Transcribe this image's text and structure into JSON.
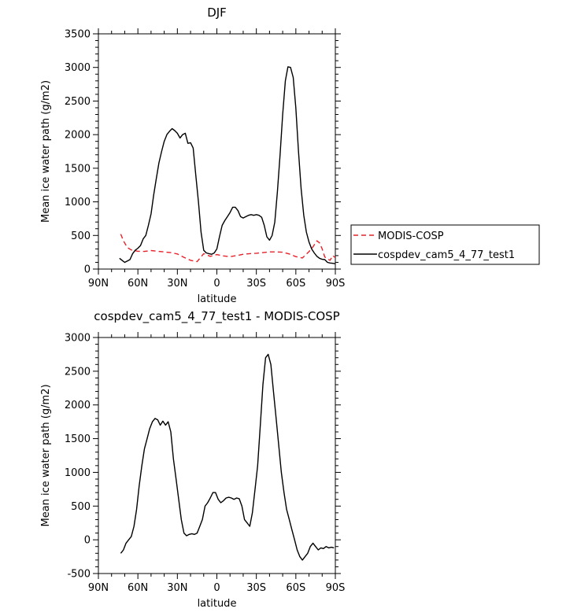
{
  "chart_data": [
    {
      "type": "line",
      "title": "DJF",
      "xlabel": "latitude",
      "ylabel": "Mean ice water path (g/m2)",
      "xlim": [
        90,
        -90
      ],
      "ylim": [
        0,
        3500
      ],
      "xticks": [
        90,
        60,
        30,
        0,
        -30,
        -60,
        -90
      ],
      "xtick_labels": [
        "90N",
        "60N",
        "30N",
        "0",
        "30S",
        "60S",
        "90S"
      ],
      "yticks": [
        0,
        500,
        1000,
        1500,
        2000,
        2500,
        3000,
        3500
      ],
      "ytick_labels": [
        "0",
        "500",
        "1000",
        "1500",
        "2000",
        "2500",
        "3000",
        "3500"
      ],
      "grid": false,
      "legend_position": "right",
      "series": [
        {
          "name": "MODIS-COSP",
          "color": "#e8202a",
          "dash": "dashed",
          "x": [
            73,
            71,
            68,
            65,
            60,
            55,
            50,
            45,
            40,
            35,
            30,
            25,
            20,
            15,
            10,
            5,
            0,
            -5,
            -10,
            -15,
            -20,
            -25,
            -30,
            -35,
            -40,
            -45,
            -50,
            -55,
            -60,
            -65,
            -70,
            -73,
            -76,
            -78,
            -80,
            -82,
            -84,
            -86,
            -88,
            -90
          ],
          "y": [
            520,
            420,
            320,
            285,
            265,
            262,
            275,
            265,
            255,
            245,
            225,
            175,
            130,
            110,
            230,
            190,
            215,
            195,
            185,
            200,
            220,
            230,
            235,
            245,
            255,
            255,
            250,
            225,
            185,
            165,
            260,
            330,
            420,
            390,
            300,
            180,
            150,
            130,
            200,
            170
          ]
        },
        {
          "name": "cospdev_cam5_4_77_test1",
          "color": "#000000",
          "dash": "solid",
          "x": [
            -90,
            -88,
            -86,
            -84,
            -82,
            -80,
            -78,
            -76,
            -74,
            -72,
            -70,
            -68,
            -66,
            -64,
            -62,
            -60,
            -58,
            -56,
            -54,
            -52,
            -50,
            -48,
            -46,
            -44,
            -42,
            -40,
            -38,
            -36,
            -34,
            -32,
            -30,
            -28,
            -26,
            -24,
            -22,
            -20,
            -18,
            -16,
            -14,
            -12,
            -10,
            -8,
            -6,
            -4,
            -2,
            0,
            2,
            4,
            6,
            8,
            10,
            12,
            14,
            16,
            18,
            20,
            22,
            24,
            26,
            28,
            30,
            32,
            34,
            36,
            38,
            40,
            42,
            44,
            46,
            48,
            50,
            52,
            54,
            56,
            58,
            60,
            62,
            64,
            66,
            68,
            70,
            72,
            74
          ],
          "y": [
            80,
            85,
            90,
            100,
            140,
            145,
            160,
            190,
            240,
            300,
            400,
            550,
            800,
            1200,
            1750,
            2400,
            2850,
            3000,
            3010,
            2800,
            2300,
            1700,
            1150,
            700,
            500,
            430,
            480,
            650,
            770,
            800,
            810,
            800,
            810,
            800,
            780,
            760,
            780,
            870,
            920,
            920,
            840,
            780,
            720,
            650,
            480,
            300,
            240,
            220,
            230,
            240,
            280,
            550,
            1000,
            1400,
            1800,
            1880,
            1870,
            2020,
            2000,
            1950,
            2020,
            2060,
            2090,
            2050,
            2000,
            1900,
            1750,
            1580,
            1350,
            1100,
            820,
            650,
            500,
            450,
            350,
            310,
            280,
            230,
            140,
            120,
            100,
            130,
            160
          ]
        }
      ]
    },
    {
      "type": "line",
      "title": "cospdev_cam5_4_77_test1 - MODIS-COSP",
      "xlabel": "latitude",
      "ylabel": "Mean ice water path (g/m2)",
      "xlim": [
        90,
        -90
      ],
      "ylim": [
        -500,
        3000
      ],
      "xticks": [
        90,
        60,
        30,
        0,
        -30,
        -60,
        -90
      ],
      "xtick_labels": [
        "90N",
        "60N",
        "30N",
        "0",
        "30S",
        "60S",
        "90S"
      ],
      "yticks": [
        -500,
        0,
        500,
        1000,
        1500,
        2000,
        2500,
        3000
      ],
      "ytick_labels": [
        "-500",
        "0",
        "500",
        "1000",
        "1500",
        "2000",
        "2500",
        "3000"
      ],
      "grid": false,
      "series": [
        {
          "color": "#000000",
          "dash": "solid",
          "x": [
            73,
            71,
            69,
            67,
            65,
            63,
            61,
            59,
            57,
            55,
            53,
            51,
            49,
            47,
            45,
            43,
            41,
            39,
            37,
            35,
            33,
            31,
            29,
            27,
            25,
            23,
            21,
            19,
            17,
            15,
            13,
            11,
            9,
            7,
            5,
            3,
            1,
            -1,
            -3,
            -5,
            -7,
            -9,
            -11,
            -13,
            -15,
            -17,
            -19,
            -21,
            -23,
            -25,
            -27,
            -29,
            -31,
            -33,
            -35,
            -37,
            -39,
            -41,
            -43,
            -45,
            -47,
            -49,
            -51,
            -53,
            -55,
            -57,
            -59,
            -61,
            -63,
            -65,
            -67,
            -69,
            -71,
            -73,
            -75,
            -77,
            -79,
            -81,
            -83,
            -85,
            -87,
            -89
          ],
          "y": [
            -200,
            -150,
            -50,
            0,
            50,
            200,
            450,
            800,
            1100,
            1350,
            1500,
            1650,
            1750,
            1800,
            1780,
            1700,
            1760,
            1700,
            1750,
            1600,
            1200,
            900,
            600,
            300,
            100,
            60,
            80,
            90,
            80,
            100,
            200,
            300,
            500,
            550,
            620,
            700,
            700,
            600,
            550,
            580,
            620,
            630,
            620,
            600,
            620,
            610,
            500,
            300,
            250,
            200,
            400,
            750,
            1100,
            1700,
            2300,
            2700,
            2750,
            2600,
            2200,
            1800,
            1400,
            1000,
            700,
            450,
            300,
            150,
            0,
            -150,
            -250,
            -300,
            -250,
            -200,
            -100,
            -50,
            -100,
            -150,
            -120,
            -130,
            -100,
            -120,
            -110,
            -120
          ]
        }
      ]
    }
  ]
}
